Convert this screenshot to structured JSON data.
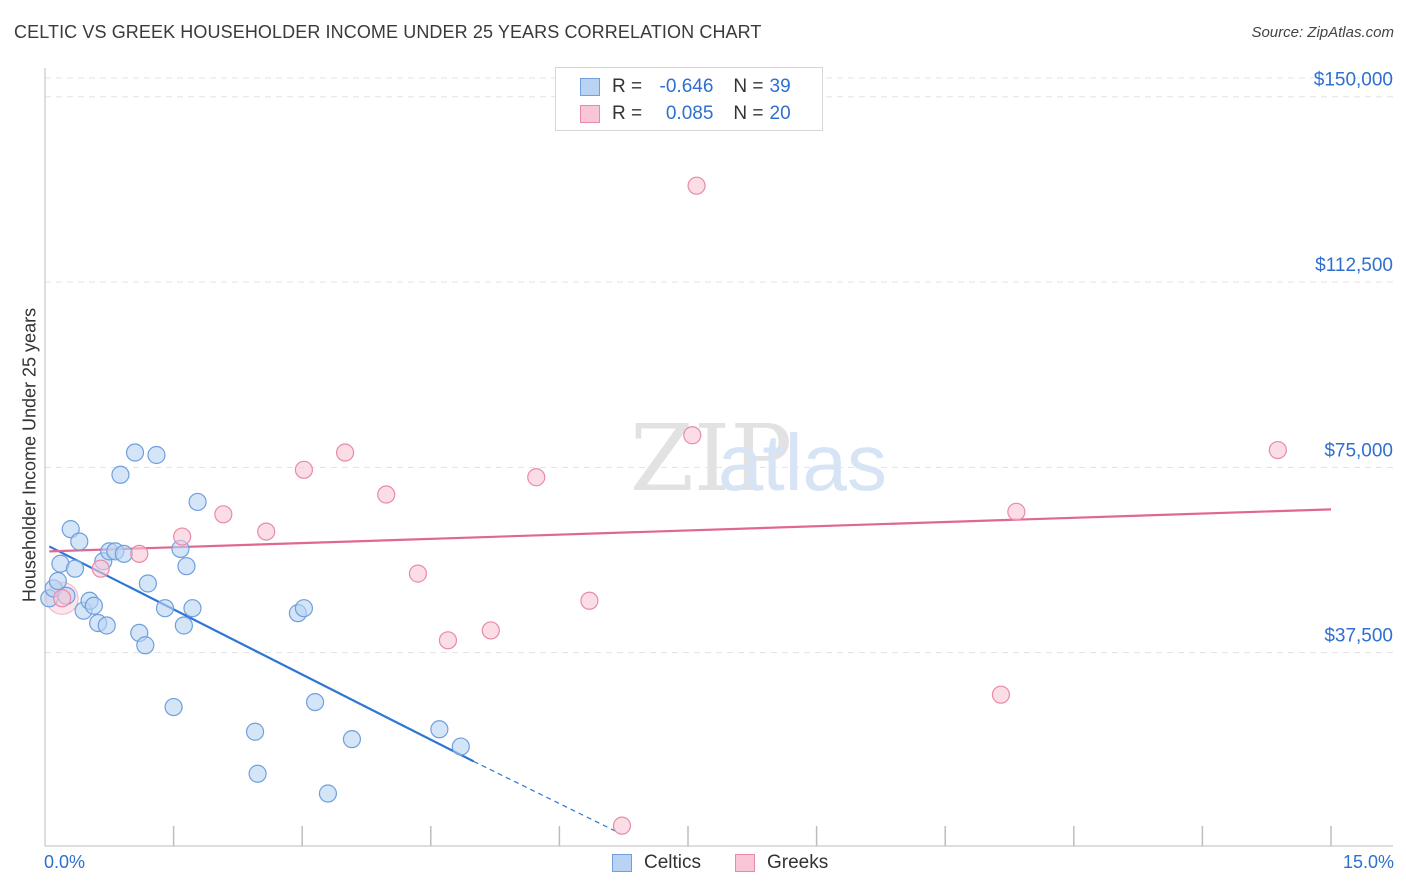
{
  "title": "CELTIC VS GREEK HOUSEHOLDER INCOME UNDER 25 YEARS CORRELATION CHART",
  "source": "Source: ZipAtlas.com",
  "watermark": {
    "zip": "ZIP",
    "atlas": "atlas"
  },
  "legend": {
    "rows": [
      {
        "r_label": "R =",
        "r_value": "-0.646",
        "n_label": "N =",
        "n_value": "39",
        "color": "#b9d3f4"
      },
      {
        "r_label": "R =",
        "r_value": "0.085",
        "n_label": "N =",
        "n_value": "20",
        "color": "#f9c6d6"
      }
    ]
  },
  "bottom_legend": {
    "celtics": "Celtics",
    "greeks": "Greeks"
  },
  "chart_data": {
    "type": "scatter",
    "title": "CELTIC VS GREEK HOUSEHOLDER INCOME UNDER 25 YEARS CORRELATION CHART",
    "xlabel": "",
    "ylabel": "Householder Income Under 25 years",
    "xlim": [
      0,
      15
    ],
    "ylim": [
      0,
      155000
    ],
    "x_tick_labels": [
      "0.0%",
      "15.0%"
    ],
    "y_ticks": [
      37500,
      75000,
      112500,
      150000
    ],
    "y_tick_labels": [
      "$37,500",
      "$75,000",
      "$112,500",
      "$150,000"
    ],
    "series": [
      {
        "name": "Celtics",
        "color": "#6f9fdc",
        "fill": "#b9d3f4",
        "points": [
          {
            "x": 0.05,
            "y": 48500
          },
          {
            "x": 0.1,
            "y": 50500
          },
          {
            "x": 0.15,
            "y": 52000
          },
          {
            "x": 0.18,
            "y": 55500
          },
          {
            "x": 0.25,
            "y": 49000
          },
          {
            "x": 0.3,
            "y": 62500
          },
          {
            "x": 0.35,
            "y": 54500
          },
          {
            "x": 0.4,
            "y": 60000
          },
          {
            "x": 0.45,
            "y": 46000
          },
          {
            "x": 0.52,
            "y": 48000
          },
          {
            "x": 0.57,
            "y": 47000
          },
          {
            "x": 0.62,
            "y": 43500
          },
          {
            "x": 0.68,
            "y": 56000
          },
          {
            "x": 0.72,
            "y": 43000
          },
          {
            "x": 0.75,
            "y": 58000
          },
          {
            "x": 0.82,
            "y": 58000
          },
          {
            "x": 0.88,
            "y": 73500
          },
          {
            "x": 1.05,
            "y": 78000
          },
          {
            "x": 1.1,
            "y": 41500
          },
          {
            "x": 1.17,
            "y": 39000
          },
          {
            "x": 1.2,
            "y": 51500
          },
          {
            "x": 1.3,
            "y": 77500
          },
          {
            "x": 1.4,
            "y": 46500
          },
          {
            "x": 1.5,
            "y": 26500
          },
          {
            "x": 1.58,
            "y": 58500
          },
          {
            "x": 1.65,
            "y": 55000
          },
          {
            "x": 1.62,
            "y": 43000
          },
          {
            "x": 1.72,
            "y": 46500
          },
          {
            "x": 1.78,
            "y": 68000
          },
          {
            "x": 2.45,
            "y": 21500
          },
          {
            "x": 2.48,
            "y": 13000
          },
          {
            "x": 2.95,
            "y": 45500
          },
          {
            "x": 3.02,
            "y": 46500
          },
          {
            "x": 3.15,
            "y": 27500
          },
          {
            "x": 3.3,
            "y": 9000
          },
          {
            "x": 3.58,
            "y": 20000
          },
          {
            "x": 4.6,
            "y": 22000
          },
          {
            "x": 4.85,
            "y": 18500
          },
          {
            "x": 0.92,
            "y": 57500
          }
        ]
      },
      {
        "name": "Greeks",
        "color": "#e88aaa",
        "fill": "#f9c6d6",
        "points": [
          {
            "x": 0.2,
            "y": 48500
          },
          {
            "x": 0.65,
            "y": 54500
          },
          {
            "x": 1.1,
            "y": 57500
          },
          {
            "x": 1.6,
            "y": 61000
          },
          {
            "x": 2.08,
            "y": 65500
          },
          {
            "x": 2.58,
            "y": 62000
          },
          {
            "x": 3.02,
            "y": 74500
          },
          {
            "x": 3.5,
            "y": 78000
          },
          {
            "x": 3.98,
            "y": 69500
          },
          {
            "x": 4.35,
            "y": 53500
          },
          {
            "x": 4.7,
            "y": 40000
          },
          {
            "x": 5.2,
            "y": 42000
          },
          {
            "x": 5.73,
            "y": 73000
          },
          {
            "x": 6.35,
            "y": 48000
          },
          {
            "x": 7.55,
            "y": 81500
          },
          {
            "x": 7.6,
            "y": 132000
          },
          {
            "x": 11.15,
            "y": 29000
          },
          {
            "x": 11.33,
            "y": 66000
          },
          {
            "x": 14.38,
            "y": 78500
          },
          {
            "x": 6.73,
            "y": 2500
          }
        ]
      }
    ],
    "trendlines": [
      {
        "series": "Celtics",
        "x1": 0.05,
        "y1": 59000,
        "x2": 5.0,
        "y2": 15500,
        "dash_x2": 6.7,
        "dash_y2": 1000,
        "color": "#2e76d6"
      },
      {
        "series": "Greeks",
        "x1": 0.05,
        "y1": 58000,
        "x2": 15.0,
        "y2": 66500,
        "color": "#e06890"
      }
    ]
  }
}
